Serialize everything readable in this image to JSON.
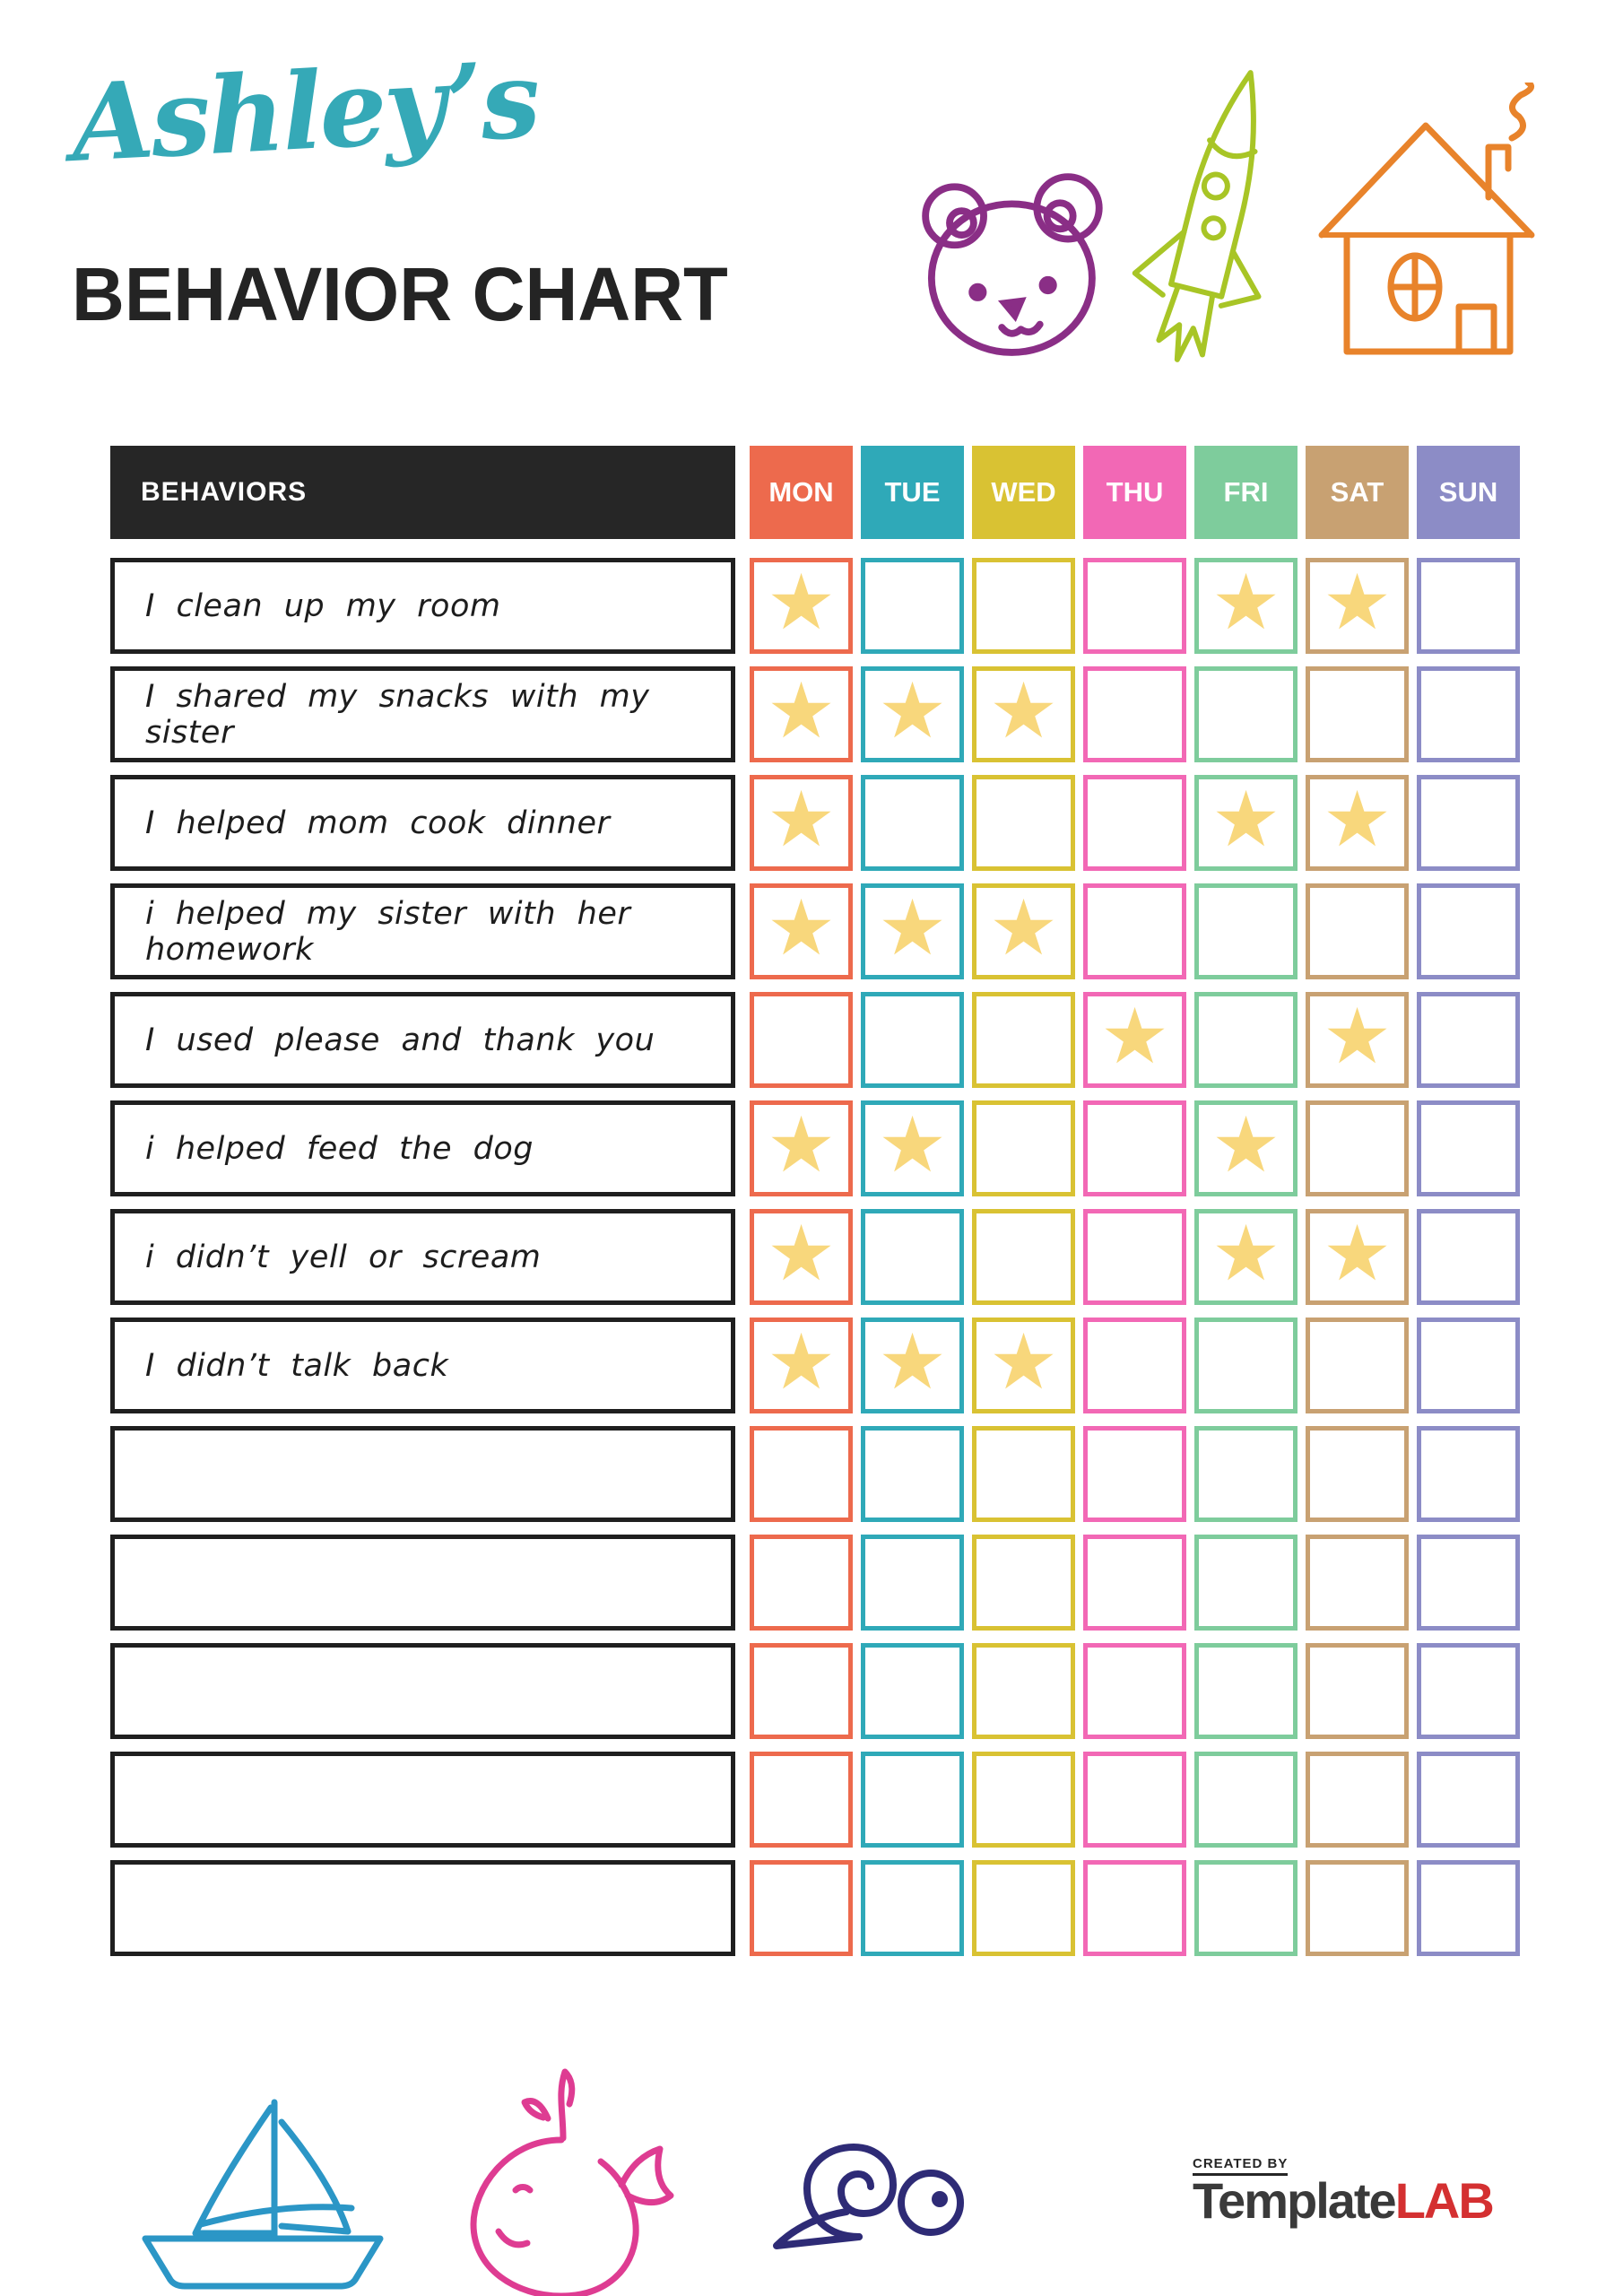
{
  "header": {
    "name_script": "Ashley’s",
    "title": "BEHAVIOR CHART"
  },
  "table": {
    "behaviors_header": "BEHAVIORS",
    "days": [
      {
        "label": "MON",
        "color": "#ed6a4d"
      },
      {
        "label": "TUE",
        "color": "#2fa9b8"
      },
      {
        "label": "WED",
        "color": "#d9c233"
      },
      {
        "label": "THU",
        "color": "#f268b5"
      },
      {
        "label": "FRI",
        "color": "#7ecc9c"
      },
      {
        "label": "SAT",
        "color": "#c8a172"
      },
      {
        "label": "SUN",
        "color": "#8c8cc6"
      }
    ],
    "star_color": "#f8d77c",
    "rows": [
      {
        "behavior": "I clean up my room",
        "stars": [
          1,
          0,
          0,
          0,
          1,
          1,
          0
        ]
      },
      {
        "behavior": "I shared my snacks with my sister",
        "stars": [
          1,
          1,
          1,
          0,
          0,
          0,
          0
        ]
      },
      {
        "behavior": "I helped mom cook dinner",
        "stars": [
          1,
          0,
          0,
          0,
          1,
          1,
          0
        ]
      },
      {
        "behavior": "i helped my sister with her homework",
        "stars": [
          1,
          1,
          1,
          0,
          0,
          0,
          0
        ]
      },
      {
        "behavior": "I used please and thank you",
        "stars": [
          0,
          0,
          0,
          1,
          0,
          1,
          0
        ]
      },
      {
        "behavior": "i helped feed the dog",
        "stars": [
          1,
          1,
          0,
          0,
          1,
          0,
          0
        ]
      },
      {
        "behavior": "i didn’t yell or scream",
        "stars": [
          1,
          0,
          0,
          0,
          1,
          1,
          0
        ]
      },
      {
        "behavior": "I didn’t talk back",
        "stars": [
          1,
          1,
          1,
          0,
          0,
          0,
          0
        ]
      },
      {
        "behavior": "",
        "stars": [
          0,
          0,
          0,
          0,
          0,
          0,
          0
        ]
      },
      {
        "behavior": "",
        "stars": [
          0,
          0,
          0,
          0,
          0,
          0,
          0
        ]
      },
      {
        "behavior": "",
        "stars": [
          0,
          0,
          0,
          0,
          0,
          0,
          0
        ]
      },
      {
        "behavior": "",
        "stars": [
          0,
          0,
          0,
          0,
          0,
          0,
          0
        ]
      },
      {
        "behavior": "",
        "stars": [
          0,
          0,
          0,
          0,
          0,
          0,
          0
        ]
      }
    ]
  },
  "footer": {
    "created_by": "CREATED BY",
    "brand_dark": "Template",
    "brand_red": "LAB"
  },
  "colors": {
    "title_teal": "#35a9b7",
    "text_dark": "#242424",
    "behaviors_header_bg": "#262626",
    "doodle_bear": "#8a2e86",
    "doodle_rocket": "#a8c526",
    "doodle_house": "#e8832b",
    "doodle_boat": "#2b96c6",
    "doodle_whale": "#de3c92",
    "doodle_snail": "#2e2b76",
    "logo_red": "#d43031"
  }
}
